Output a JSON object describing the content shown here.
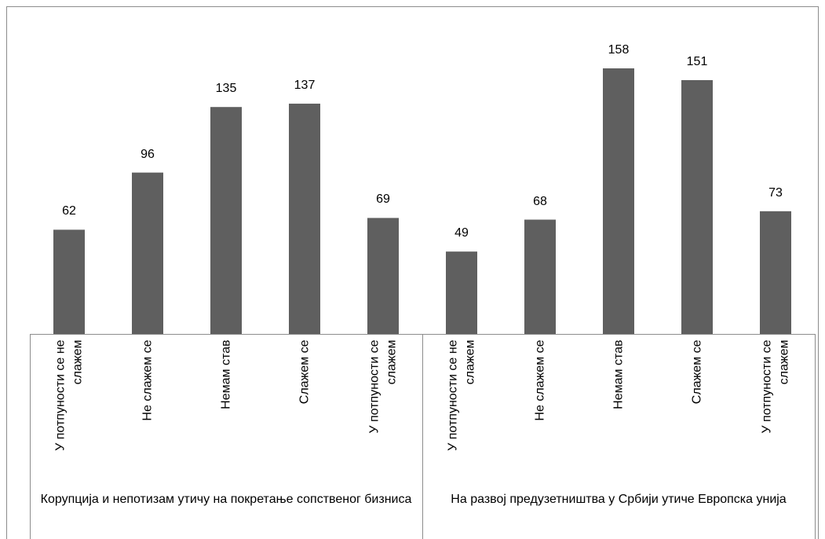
{
  "chart_data": {
    "type": "bar",
    "color": "#5f5f5f",
    "groups": [
      {
        "name": "Корупција и непотизам утичу на покретање сопственог бизниса",
        "categories": [
          "У потпуности се не слажем",
          "Не слажем се",
          "Немам став",
          "Слажем се",
          "У потпуности се слажем"
        ],
        "values": [
          62,
          96,
          135,
          137,
          69
        ]
      },
      {
        "name": "На развој предузетништва у Србији утиче Европска унија",
        "categories": [
          "У потпуности се не слажем",
          "Не слажем се",
          "Немам став",
          "Слажем се",
          "У потпуности се слажем"
        ],
        "values": [
          49,
          68,
          158,
          151,
          73
        ]
      }
    ]
  }
}
